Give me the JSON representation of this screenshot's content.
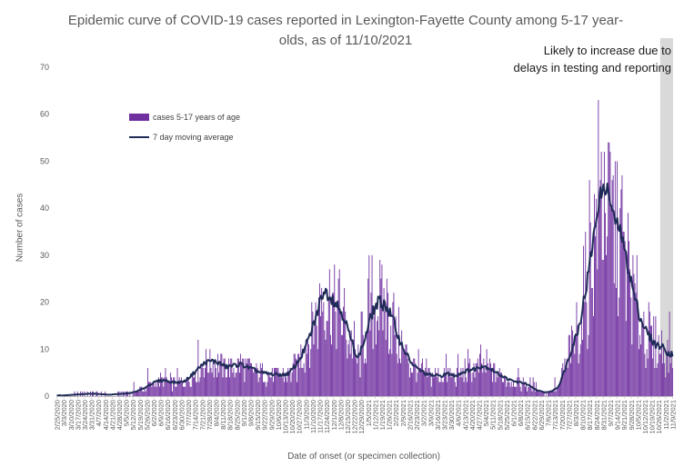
{
  "chart_data": {
    "type": "bar",
    "title": "Epidemic curve of COVID-19 cases reported in Lexington-Fayette County among 5-17 year-olds, as of 11/10/2021",
    "xlabel": "Date of onset (or specimen collection)",
    "ylabel": "Number of cases",
    "ylim": [
      0,
      70
    ],
    "yticks": [
      0,
      10,
      20,
      30,
      40,
      50,
      60,
      70
    ],
    "x_range": [
      "2/25/2020",
      "11/9/2021"
    ],
    "x_tick_labels": [
      "2/25/2020",
      "3/3/2020",
      "3/10/2020",
      "3/17/2020",
      "3/24/2020",
      "3/31/2020",
      "4/7/2020",
      "4/14/2020",
      "4/21/2020",
      "4/28/2020",
      "5/5/2020",
      "5/12/2020",
      "5/19/2020",
      "5/26/2020",
      "6/2/2020",
      "6/9/2020",
      "6/16/2020",
      "6/23/2020",
      "6/30/2020",
      "7/7/2020",
      "7/14/2020",
      "7/21/2020",
      "7/28/2020",
      "8/4/2020",
      "8/11/2020",
      "8/18/2020",
      "8/25/2020",
      "9/1/2020",
      "9/8/2020",
      "9/15/2020",
      "9/22/2020",
      "9/29/2020",
      "10/6/2020",
      "10/13/2020",
      "10/20/2020",
      "10/27/2020",
      "11/3/2020",
      "11/10/2020",
      "11/17/2020",
      "11/24/2020",
      "12/1/2020",
      "12/8/2020",
      "12/15/2020",
      "12/22/2020",
      "12/29/2020",
      "1/5/2021",
      "1/12/2021",
      "1/19/2021",
      "1/26/2021",
      "2/2/2021",
      "2/9/2021",
      "2/16/2021",
      "2/23/2021",
      "3/2/2021",
      "3/9/2021",
      "3/16/2021",
      "3/23/2021",
      "3/30/2021",
      "4/6/2021",
      "4/13/2021",
      "4/20/2021",
      "4/27/2021",
      "5/4/2021",
      "5/11/2021",
      "5/18/2021",
      "5/25/2021",
      "6/1/2021",
      "6/8/2021",
      "6/15/2021",
      "6/22/2021",
      "6/29/2021",
      "7/6/2021",
      "7/13/2021",
      "7/20/2021",
      "7/27/2021",
      "8/3/2021",
      "8/10/2021",
      "8/17/2021",
      "8/24/2021",
      "8/31/2021",
      "9/7/2021",
      "9/14/2021",
      "9/21/2021",
      "9/28/2021",
      "10/5/2021",
      "10/12/2021",
      "10/19/2021",
      "10/26/2021",
      "11/2/2021",
      "11/9/2021"
    ],
    "weekly": {
      "week_start": [
        "2/25/2020",
        "3/3/2020",
        "3/10/2020",
        "3/17/2020",
        "3/24/2020",
        "3/31/2020",
        "4/7/2020",
        "4/14/2020",
        "4/21/2020",
        "4/28/2020",
        "5/5/2020",
        "5/12/2020",
        "5/19/2020",
        "5/26/2020",
        "6/2/2020",
        "6/9/2020",
        "6/16/2020",
        "6/23/2020",
        "6/30/2020",
        "7/7/2020",
        "7/14/2020",
        "7/21/2020",
        "7/28/2020",
        "8/4/2020",
        "8/11/2020",
        "8/18/2020",
        "8/25/2020",
        "9/1/2020",
        "9/8/2020",
        "9/15/2020",
        "9/22/2020",
        "9/29/2020",
        "10/6/2020",
        "10/13/2020",
        "10/20/2020",
        "10/27/2020",
        "11/3/2020",
        "11/10/2020",
        "11/17/2020",
        "11/24/2020",
        "12/1/2020",
        "12/8/2020",
        "12/15/2020",
        "12/22/2020",
        "12/29/2020",
        "1/5/2021",
        "1/12/2021",
        "1/19/2021",
        "1/26/2021",
        "2/2/2021",
        "2/9/2021",
        "2/16/2021",
        "2/23/2021",
        "3/2/2021",
        "3/9/2021",
        "3/16/2021",
        "3/23/2021",
        "3/30/2021",
        "4/6/2021",
        "4/13/2021",
        "4/20/2021",
        "4/27/2021",
        "5/4/2021",
        "5/11/2021",
        "5/18/2021",
        "5/25/2021",
        "6/1/2021",
        "6/8/2021",
        "6/15/2021",
        "6/22/2021",
        "6/29/2021",
        "7/6/2021",
        "7/13/2021",
        "7/20/2021",
        "7/27/2021",
        "8/3/2021",
        "8/10/2021",
        "8/17/2021",
        "8/24/2021",
        "8/31/2021",
        "9/7/2021",
        "9/14/2021",
        "9/21/2021",
        "9/28/2021",
        "10/5/2021",
        "10/12/2021",
        "10/19/2021",
        "10/26/2021",
        "11/2/2021"
      ],
      "avg_daily_cases": [
        0.1,
        0.2,
        0.3,
        0.4,
        0.5,
        0.5,
        0.4,
        0.3,
        0.4,
        0.5,
        0.6,
        1.0,
        1.6,
        2.5,
        3.2,
        3.4,
        3.0,
        2.9,
        3.2,
        4.5,
        6.0,
        7.2,
        7.5,
        7.0,
        6.2,
        6.5,
        6.8,
        6.2,
        5.6,
        5.0,
        4.8,
        4.6,
        4.5,
        4.8,
        6.5,
        9.0,
        12.5,
        17.0,
        22.5,
        21.5,
        19.5,
        17.0,
        12.0,
        8.0,
        12.0,
        17.5,
        20.0,
        19.5,
        16.5,
        12.0,
        9.0,
        6.5,
        5.5,
        4.6,
        4.4,
        4.3,
        4.8,
        4.3,
        5.0,
        5.5,
        5.8,
        6.5,
        6.0,
        5.0,
        4.2,
        3.4,
        3.0,
        2.8,
        2.0,
        1.2,
        0.8,
        1.0,
        2.0,
        6.0,
        10.5,
        15.0,
        23.0,
        33.0,
        43.0,
        44.5,
        38.0,
        35.0,
        28.0,
        21.0,
        16.0,
        13.0,
        11.0,
        10.5,
        9.0
      ],
      "max_daily_cases": [
        0,
        1,
        1,
        1,
        1,
        1,
        1,
        1,
        1,
        1,
        1,
        3,
        4,
        6,
        6,
        6,
        5,
        6,
        7,
        10,
        12,
        11,
        10,
        9,
        8,
        8,
        9,
        8,
        7,
        7,
        7,
        6,
        6,
        7,
        9,
        13,
        20,
        28,
        33,
        29,
        28,
        26,
        22,
        16,
        18,
        30,
        29,
        28,
        26,
        19,
        14,
        11,
        10,
        8,
        8,
        8,
        9,
        8,
        9,
        10,
        10,
        11,
        10,
        9,
        7,
        6,
        6,
        5,
        4,
        3,
        2,
        2,
        4,
        11,
        15,
        23,
        35,
        48,
        63,
        54,
        52,
        50,
        42,
        30,
        24,
        20,
        17,
        15,
        18
      ]
    },
    "series": [
      {
        "name": "cases 5-17 years of age",
        "type": "bar",
        "color": "#7030a0"
      },
      {
        "name": "7 day moving average",
        "type": "line",
        "color": "#1f2b57",
        "weekly_values": [
          0.1,
          0.2,
          0.3,
          0.4,
          0.5,
          0.5,
          0.4,
          0.3,
          0.4,
          0.5,
          0.6,
          1.0,
          1.6,
          2.5,
          3.2,
          3.4,
          3.0,
          2.9,
          3.2,
          4.5,
          6.0,
          7.2,
          7.5,
          7.0,
          6.2,
          6.5,
          6.8,
          6.2,
          5.6,
          5.0,
          4.8,
          4.6,
          4.5,
          4.8,
          6.5,
          9.0,
          12.5,
          17.0,
          22.5,
          21.5,
          19.5,
          17.0,
          12.0,
          8.0,
          12.0,
          17.5,
          20.0,
          19.5,
          16.5,
          12.0,
          9.0,
          6.5,
          5.5,
          4.6,
          4.4,
          4.3,
          4.8,
          4.3,
          5.0,
          5.5,
          5.8,
          6.5,
          6.0,
          5.0,
          4.2,
          3.4,
          3.0,
          2.8,
          2.0,
          1.2,
          0.8,
          1.0,
          2.0,
          6.0,
          10.5,
          15.0,
          23.0,
          33.0,
          43.0,
          44.5,
          38.0,
          35.0,
          28.0,
          21.0,
          16.0,
          13.0,
          11.0,
          10.5,
          9.0
        ]
      }
    ],
    "shaded_region": {
      "start": "10/28/2021",
      "end": "11/9/2021",
      "color": "#d9d9d9",
      "label": "Likely to increase due to delays in testing and reporting"
    },
    "legend": {
      "position": "top-left"
    },
    "grid": false
  }
}
